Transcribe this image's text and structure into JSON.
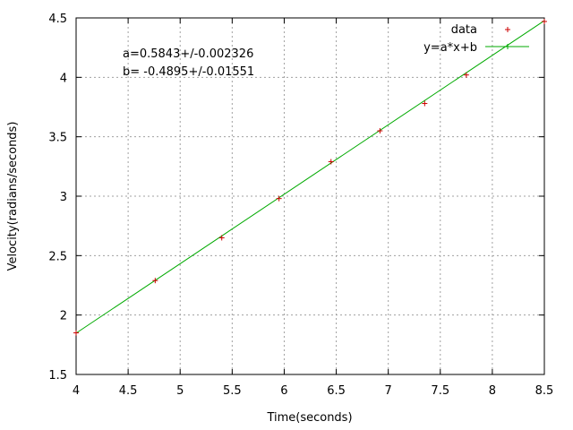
{
  "chart_data": {
    "type": "scatter",
    "xlabel": "Time(seconds)",
    "ylabel": "Velocity(radians/seconds)",
    "xlim": [
      4,
      8.5
    ],
    "ylim": [
      1.5,
      4.5
    ],
    "x_ticks": [
      4,
      4.5,
      5,
      5.5,
      6,
      6.5,
      7,
      7.5,
      8,
      8.5
    ],
    "y_ticks": [
      1.5,
      2,
      2.5,
      3,
      3.5,
      4,
      4.5
    ],
    "x_tick_labels": [
      "4",
      "4.5",
      "5",
      "5.5",
      "6",
      "6.5",
      "7",
      "7.5",
      "8",
      "8.5"
    ],
    "y_tick_labels": [
      "1.5",
      "2",
      "2.5",
      "3",
      "3.5",
      "4",
      "4.5"
    ],
    "grid": true,
    "legend_position": "top-right",
    "annotation_lines": [
      "a=0.5843+/-0.002326",
      "b= -0.4895+/-0.01551"
    ],
    "series": [
      {
        "name": "data",
        "kind": "points",
        "color": "#cc0000",
        "marker": "plus",
        "x": [
          4.0,
          4.76,
          5.4,
          5.95,
          6.45,
          6.92,
          7.35,
          7.75,
          8.5
        ],
        "y": [
          1.85,
          2.29,
          2.65,
          2.98,
          3.29,
          3.55,
          3.78,
          4.02,
          4.47
        ]
      },
      {
        "name": "y=a*x+b",
        "kind": "line",
        "color": "#00aa00",
        "slope": 0.5843,
        "intercept": -0.4895
      }
    ]
  }
}
